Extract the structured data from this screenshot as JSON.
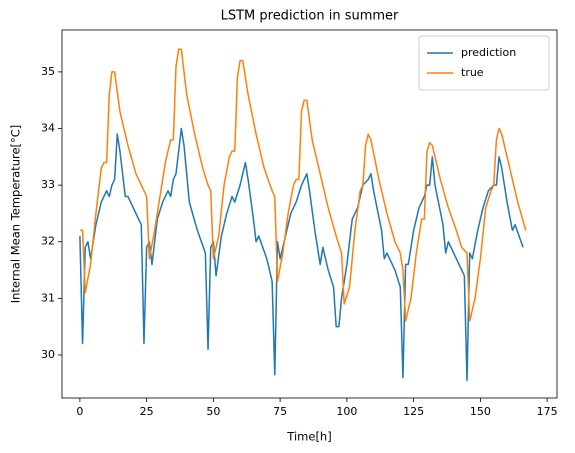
{
  "chart_data": {
    "type": "line",
    "title": "LSTM prediction in summer",
    "x_label": "Time[h]",
    "y_label": "Internal Mean Temperature[°C]",
    "xlim": [
      -6.7,
      178.7
    ],
    "ylim": [
      29.24,
      35.74
    ],
    "xticks": [
      0,
      25,
      50,
      75,
      100,
      125,
      150,
      175
    ],
    "yticks": [
      30,
      31,
      32,
      33,
      34,
      35
    ],
    "legend": "upper right",
    "series": [
      {
        "name": "prediction",
        "color": "#1f77b4",
        "x": [
          0,
          1,
          2,
          3,
          4,
          6,
          8,
          10,
          11,
          12,
          13,
          14,
          15,
          17,
          18,
          20,
          23,
          24,
          25,
          26,
          27,
          29,
          31,
          33,
          34,
          35,
          36,
          38,
          39,
          41,
          44,
          47,
          48,
          49,
          50,
          51,
          53,
          55,
          57,
          58,
          60,
          62,
          63,
          65,
          66,
          67,
          70,
          72,
          73,
          74,
          75,
          77,
          79,
          81,
          83,
          85,
          86,
          88,
          90,
          91,
          93,
          95,
          96,
          97,
          98,
          100,
          102,
          104,
          106,
          108,
          109,
          110,
          113,
          114,
          115,
          118,
          120,
          121,
          122,
          123,
          125,
          127,
          129,
          130,
          131,
          132,
          133,
          136,
          137,
          138,
          141,
          144,
          145,
          146,
          147,
          149,
          151,
          153,
          155,
          156,
          157,
          158,
          160,
          162,
          163,
          166
        ],
        "values": [
          32.1,
          30.2,
          31.9,
          32.0,
          31.7,
          32.3,
          32.7,
          32.9,
          32.8,
          33.0,
          33.1,
          33.9,
          33.6,
          32.8,
          32.8,
          32.6,
          32.3,
          30.2,
          31.9,
          32.0,
          31.6,
          32.4,
          32.7,
          32.9,
          32.8,
          33.1,
          33.2,
          34.0,
          33.7,
          32.7,
          32.2,
          31.8,
          30.1,
          31.9,
          32.0,
          31.4,
          32.1,
          32.5,
          32.8,
          32.7,
          33.0,
          33.4,
          33.1,
          32.4,
          32.0,
          32.1,
          31.7,
          31.3,
          29.65,
          32.0,
          31.7,
          32.1,
          32.5,
          32.7,
          33.0,
          33.2,
          32.9,
          32.2,
          31.6,
          31.9,
          31.5,
          31.2,
          30.5,
          30.5,
          31.0,
          31.6,
          32.4,
          32.6,
          33.0,
          33.1,
          33.2,
          32.9,
          32.2,
          31.7,
          31.8,
          31.5,
          31.2,
          29.6,
          31.6,
          31.6,
          32.2,
          32.6,
          32.8,
          33.0,
          33.0,
          33.5,
          33.0,
          32.3,
          31.8,
          32.0,
          31.7,
          31.4,
          29.55,
          31.8,
          31.7,
          32.2,
          32.6,
          32.9,
          33.0,
          33.0,
          33.5,
          33.3,
          32.7,
          32.2,
          32.3,
          31.9
        ]
      },
      {
        "name": "true",
        "color": "#ff7f0e",
        "x": [
          0,
          1,
          2,
          4,
          6,
          8,
          9,
          10,
          11,
          12,
          13,
          15,
          18,
          21,
          24,
          25,
          26,
          28,
          30,
          32,
          34,
          35,
          36,
          37,
          38,
          40,
          43,
          46,
          48,
          49,
          50,
          52,
          54,
          56,
          57,
          58,
          59,
          60,
          61,
          63,
          66,
          69,
          72,
          73,
          74,
          76,
          78,
          80,
          81,
          82,
          83,
          84,
          85,
          87,
          90,
          93,
          96,
          98,
          99,
          101,
          103,
          105,
          106,
          107,
          108,
          109,
          112,
          115,
          118,
          120,
          121,
          122,
          124,
          126,
          128,
          129,
          130,
          131,
          132,
          135,
          138,
          141,
          143,
          145,
          146,
          148,
          150,
          152,
          154,
          155,
          156,
          157,
          158,
          161,
          164,
          167
        ],
        "values": [
          32.2,
          32.2,
          31.1,
          31.6,
          32.5,
          33.3,
          33.4,
          33.4,
          34.6,
          35.0,
          35.0,
          34.3,
          33.7,
          33.2,
          32.9,
          32.8,
          31.7,
          32.2,
          32.8,
          33.4,
          33.8,
          33.8,
          35.1,
          35.4,
          35.4,
          34.6,
          33.9,
          33.3,
          33.0,
          32.9,
          31.7,
          32.1,
          33.0,
          33.5,
          33.6,
          33.6,
          34.9,
          35.2,
          35.2,
          34.6,
          33.9,
          33.3,
          32.9,
          32.8,
          31.3,
          31.8,
          32.5,
          33.0,
          33.1,
          33.1,
          34.3,
          34.5,
          34.5,
          33.8,
          33.2,
          32.6,
          32.1,
          31.8,
          30.9,
          31.2,
          32.2,
          32.9,
          33.0,
          33.7,
          33.9,
          33.8,
          33.1,
          32.5,
          32.0,
          31.8,
          31.5,
          30.6,
          31.0,
          31.8,
          32.4,
          32.4,
          33.6,
          33.75,
          33.7,
          33.1,
          32.6,
          32.2,
          31.9,
          31.8,
          30.6,
          31.0,
          31.7,
          32.6,
          32.9,
          33.0,
          33.8,
          34.0,
          33.9,
          33.3,
          32.7,
          32.2
        ]
      }
    ]
  }
}
